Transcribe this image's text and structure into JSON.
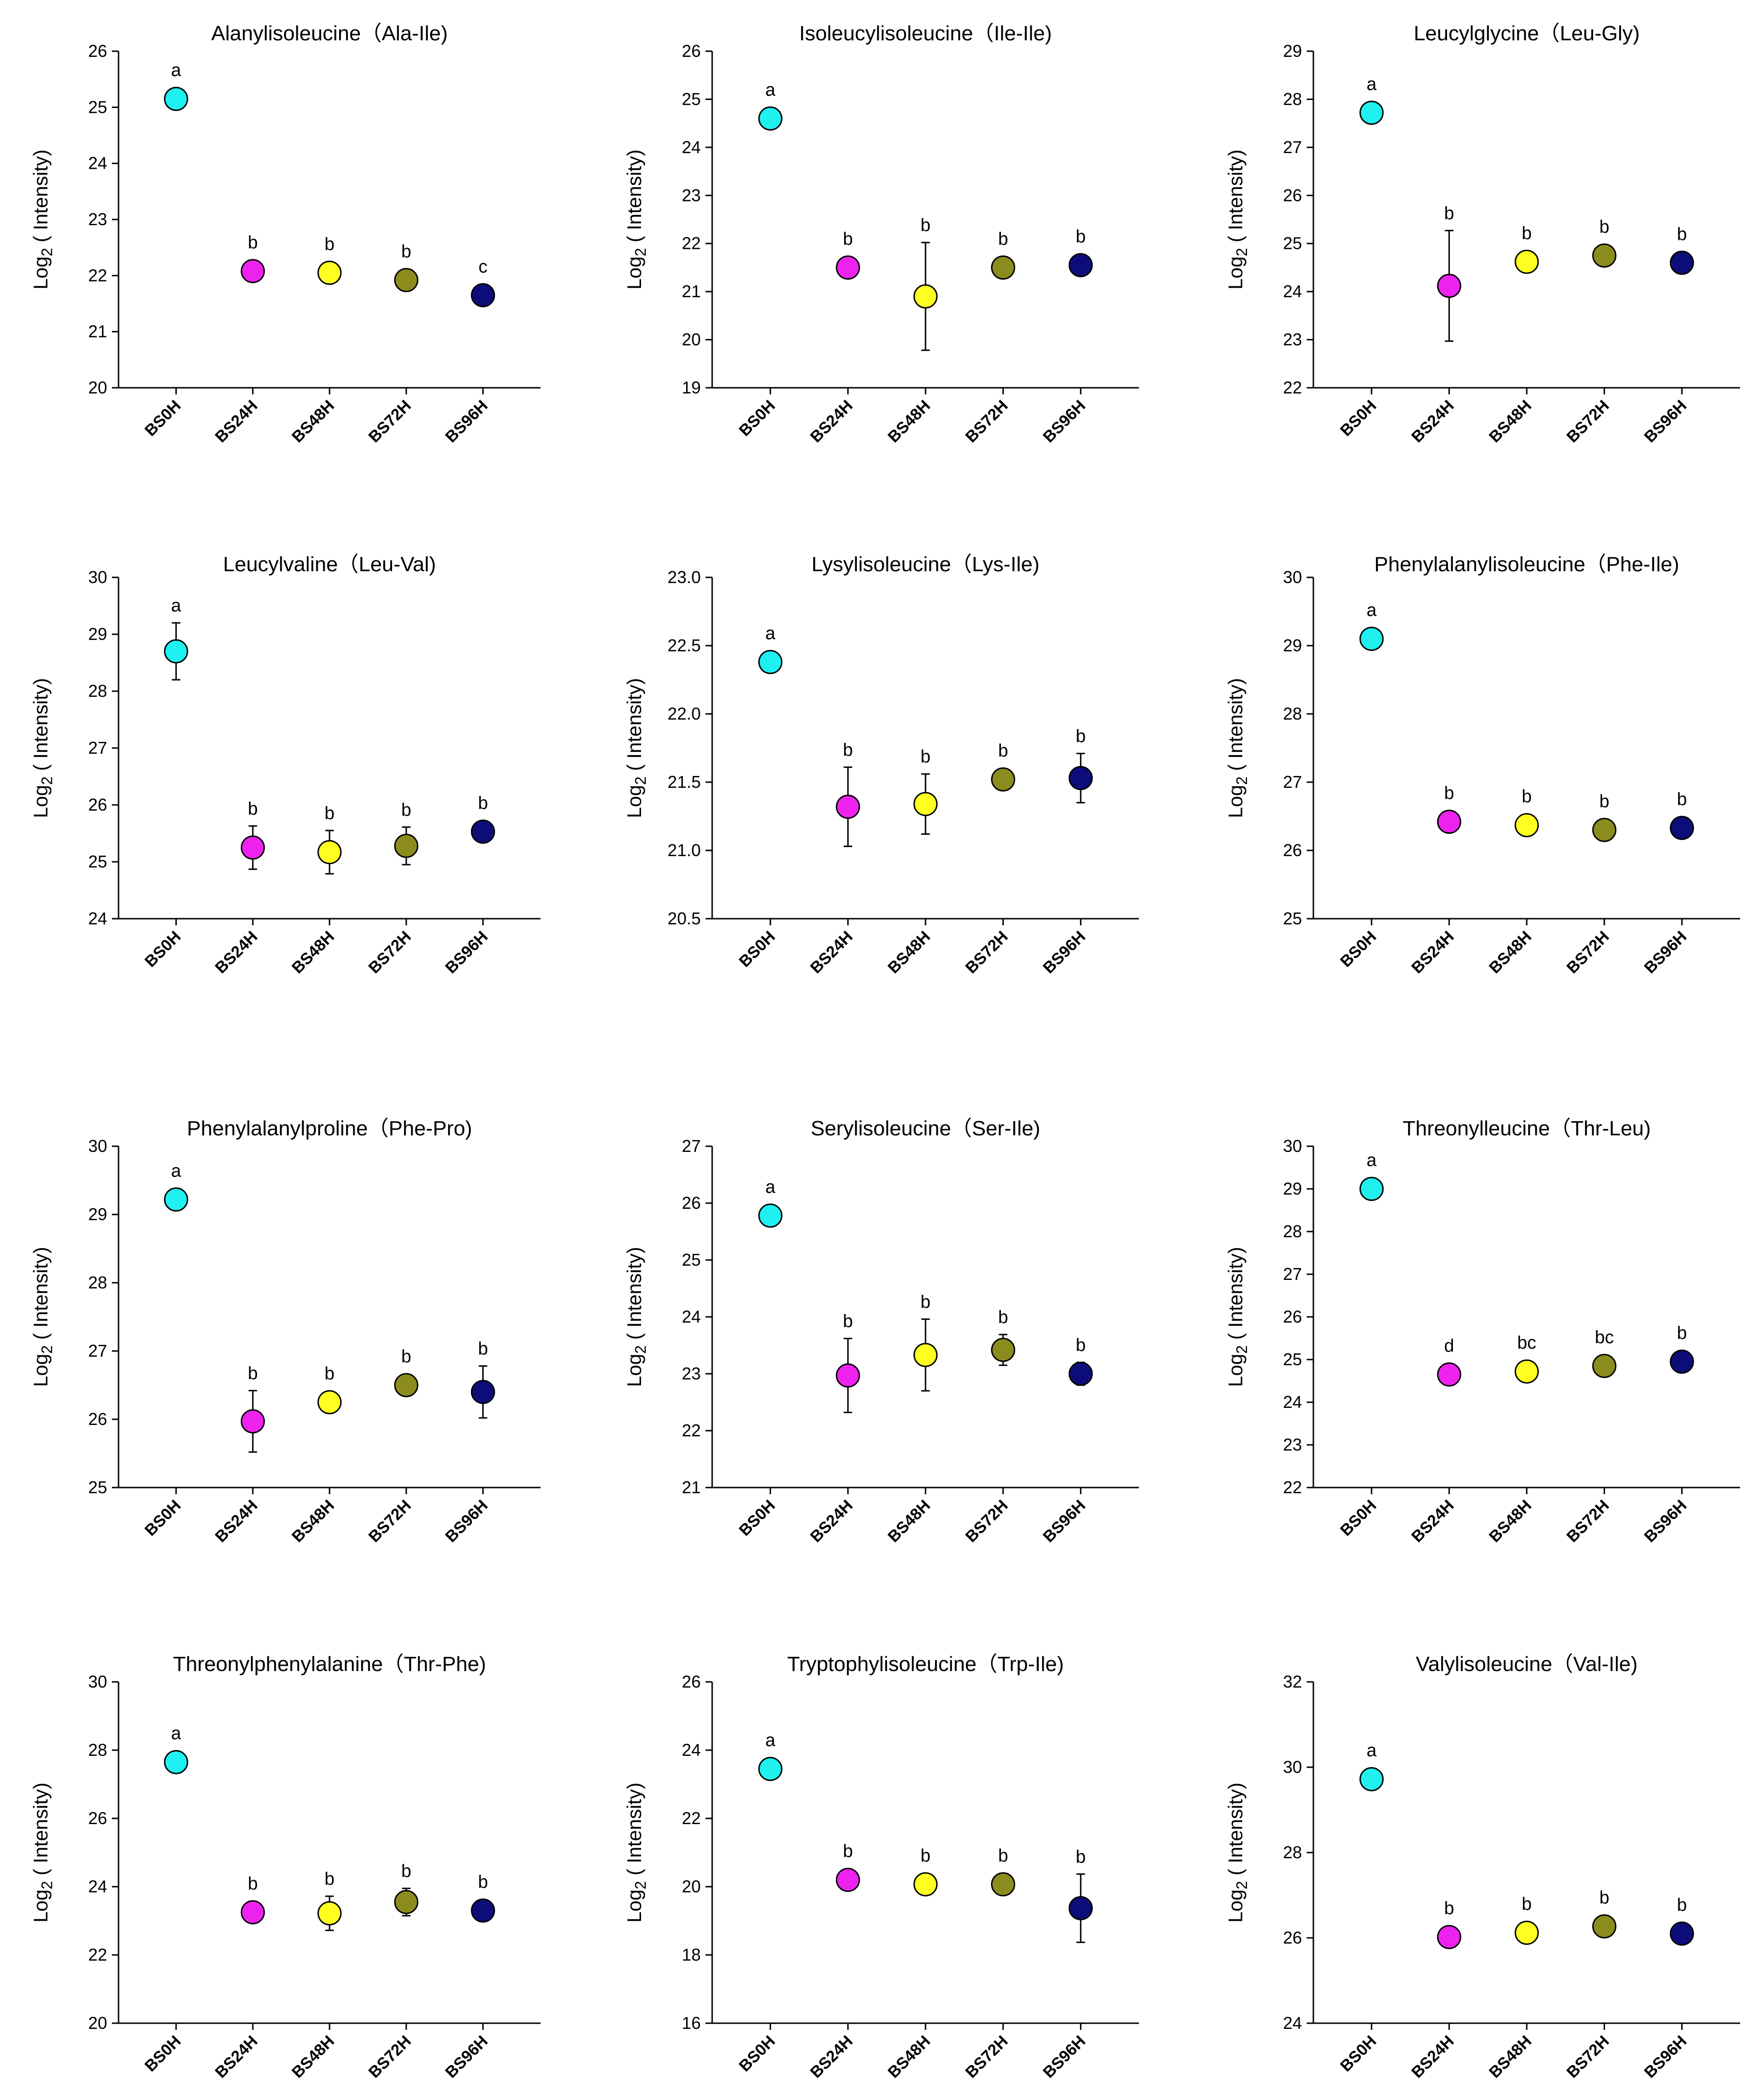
{
  "figure": {
    "ylabel_main": "Log",
    "ylabel_sub": "2",
    "ylabel_tail": " ( Intensity)"
  },
  "chart_data": [
    {
      "type": "scatter",
      "title": "Alanylisoleucine（Ala-Ile)",
      "categories": [
        "BS0H",
        "BS24H",
        "BS48H",
        "BS72H",
        "BS96H"
      ],
      "values": [
        25.15,
        22.08,
        22.05,
        21.92,
        21.65
      ],
      "errors": [
        0.12,
        0.15,
        0.1,
        0.12,
        0.1
      ],
      "letters": [
        "a",
        "b",
        "b",
        "b",
        "c"
      ],
      "ylim": [
        20,
        26
      ],
      "yticks": [
        20,
        21,
        22,
        23,
        24,
        25,
        26
      ],
      "ytick_labels": [
        "20",
        "21",
        "22",
        "23",
        "24",
        "25",
        "26"
      ],
      "ylabel": "Log2 ( Intensity)",
      "xlabel": ""
    },
    {
      "type": "scatter",
      "title": "Isoleucylisoleucine（Ile-Ile)",
      "categories": [
        "BS0H",
        "BS24H",
        "BS48H",
        "BS72H",
        "BS96H"
      ],
      "values": [
        24.6,
        21.5,
        20.9,
        21.5,
        21.55
      ],
      "errors": [
        0.15,
        0.1,
        1.12,
        0.1,
        0.08
      ],
      "letters": [
        "a",
        "b",
        "b",
        "b",
        "b"
      ],
      "ylim": [
        19,
        26
      ],
      "yticks": [
        19,
        20,
        21,
        22,
        23,
        24,
        25,
        26
      ],
      "ytick_labels": [
        "19",
        "20",
        "21",
        "22",
        "23",
        "24",
        "25",
        "26"
      ],
      "ylabel": "Log2 ( Intensity)",
      "xlabel": ""
    },
    {
      "type": "scatter",
      "title": "Leucylglycine（Leu-Gly)",
      "categories": [
        "BS0H",
        "BS24H",
        "BS48H",
        "BS72H",
        "BS96H"
      ],
      "values": [
        27.72,
        24.12,
        24.62,
        24.75,
        24.6
      ],
      "errors": [
        0.08,
        1.15,
        0.1,
        0.15,
        0.08
      ],
      "letters": [
        "a",
        "b",
        "b",
        "b",
        "b"
      ],
      "ylim": [
        22,
        29
      ],
      "yticks": [
        22,
        23,
        24,
        25,
        26,
        27,
        28,
        29
      ],
      "ytick_labels": [
        "22",
        "23",
        "24",
        "25",
        "26",
        "27",
        "28",
        "29"
      ],
      "ylabel": "Log2 ( Intensity)",
      "xlabel": ""
    },
    {
      "type": "scatter",
      "title": "Leucylvaline（Leu-Val)",
      "categories": [
        "BS0H",
        "BS24H",
        "BS48H",
        "BS72H",
        "BS96H"
      ],
      "values": [
        28.7,
        25.25,
        25.17,
        25.28,
        25.53
      ],
      "errors": [
        0.5,
        0.38,
        0.38,
        0.33,
        0.12
      ],
      "letters": [
        "a",
        "b",
        "b",
        "b",
        "b"
      ],
      "ylim": [
        24,
        30
      ],
      "yticks": [
        24,
        25,
        26,
        27,
        28,
        29,
        30
      ],
      "ytick_labels": [
        "24",
        "25",
        "26",
        "27",
        "28",
        "29",
        "30"
      ],
      "ylabel": "Log2 ( Intensity)",
      "xlabel": ""
    },
    {
      "type": "scatter",
      "title": "Lysylisoleucine（Lys-Ile)",
      "categories": [
        "BS0H",
        "BS24H",
        "BS48H",
        "BS72H",
        "BS96H"
      ],
      "values": [
        22.38,
        21.32,
        21.34,
        21.52,
        21.53
      ],
      "errors": [
        0.05,
        0.29,
        0.22,
        0.04,
        0.18
      ],
      "letters": [
        "a",
        "b",
        "b",
        "b",
        "b"
      ],
      "ylim": [
        20.5,
        23.0
      ],
      "yticks": [
        20.5,
        21.0,
        21.5,
        22.0,
        22.5,
        23.0
      ],
      "ytick_labels": [
        "20.5",
        "21.0",
        "21.5",
        "22.0",
        "22.5",
        "23.0"
      ],
      "ylabel": "Log2 ( Intensity)",
      "xlabel": ""
    },
    {
      "type": "scatter",
      "title": "Phenylalanylisoleucine（Phe-Ile)",
      "categories": [
        "BS0H",
        "BS24H",
        "BS48H",
        "BS72H",
        "BS96H"
      ],
      "values": [
        29.1,
        26.42,
        26.37,
        26.3,
        26.33
      ],
      "errors": [
        0.12,
        0.1,
        0.12,
        0.08,
        0.08
      ],
      "letters": [
        "a",
        "b",
        "b",
        "b",
        "b"
      ],
      "ylim": [
        25,
        30
      ],
      "yticks": [
        25,
        26,
        27,
        28,
        29,
        30
      ],
      "ytick_labels": [
        "25",
        "26",
        "27",
        "28",
        "29",
        "30"
      ],
      "ylabel": "Log2 ( Intensity)",
      "xlabel": ""
    },
    {
      "type": "scatter",
      "title": "Phenylalanylproline（Phe-Pro)",
      "categories": [
        "BS0H",
        "BS24H",
        "BS48H",
        "BS72H",
        "BS96H"
      ],
      "values": [
        29.22,
        25.97,
        26.25,
        26.5,
        26.4
      ],
      "errors": [
        0.1,
        0.45,
        0.1,
        0.12,
        0.38
      ],
      "letters": [
        "a",
        "b",
        "b",
        "b",
        "b"
      ],
      "ylim": [
        25,
        30
      ],
      "yticks": [
        25,
        26,
        27,
        28,
        29,
        30
      ],
      "ytick_labels": [
        "25",
        "26",
        "27",
        "28",
        "29",
        "30"
      ],
      "ylabel": "Log2 ( Intensity)",
      "xlabel": ""
    },
    {
      "type": "scatter",
      "title": "Serylisoleucine（Ser-Ile)",
      "categories": [
        "BS0H",
        "BS24H",
        "BS48H",
        "BS72H",
        "BS96H"
      ],
      "values": [
        25.78,
        22.97,
        23.33,
        23.42,
        23.0
      ],
      "errors": [
        0.12,
        0.65,
        0.63,
        0.27,
        0.2
      ],
      "letters": [
        "a",
        "b",
        "b",
        "b",
        "b"
      ],
      "ylim": [
        21,
        27
      ],
      "yticks": [
        21,
        22,
        23,
        24,
        25,
        26,
        27
      ],
      "ytick_labels": [
        "21",
        "22",
        "23",
        "24",
        "25",
        "26",
        "27"
      ],
      "ylabel": "Log2 ( Intensity)",
      "xlabel": ""
    },
    {
      "type": "scatter",
      "title": "Threonylleucine（Thr-Leu)",
      "categories": [
        "BS0H",
        "BS24H",
        "BS48H",
        "BS72H",
        "BS96H"
      ],
      "values": [
        29.0,
        24.65,
        24.72,
        24.85,
        24.95
      ],
      "errors": [
        0.2,
        0.12,
        0.2,
        0.15,
        0.12
      ],
      "letters": [
        "a",
        "d",
        "bc",
        "bc",
        "b"
      ],
      "ylim": [
        22,
        30
      ],
      "yticks": [
        22,
        23,
        24,
        25,
        26,
        27,
        28,
        29,
        30
      ],
      "ytick_labels": [
        "22",
        "23",
        "24",
        "25",
        "26",
        "27",
        "28",
        "29",
        "30"
      ],
      "ylabel": "Log2 ( Intensity)",
      "xlabel": ""
    },
    {
      "type": "scatter",
      "title": "Threonylphenylalanine（Thr-Phe)",
      "categories": [
        "BS0H",
        "BS24H",
        "BS48H",
        "BS72H",
        "BS96H"
      ],
      "values": [
        27.65,
        23.25,
        23.22,
        23.55,
        23.3
      ],
      "errors": [
        0.15,
        0.15,
        0.5,
        0.4,
        0.12
      ],
      "letters": [
        "a",
        "b",
        "b",
        "b",
        "b"
      ],
      "ylim": [
        20,
        30
      ],
      "yticks": [
        20,
        22,
        24,
        26,
        28,
        30
      ],
      "ytick_labels": [
        "20",
        "22",
        "24",
        "26",
        "28",
        "30"
      ],
      "ylabel": "Log2 ( Intensity)",
      "xlabel": ""
    },
    {
      "type": "scatter",
      "title": "Tryptophylisoleucine（Trp-Ile)",
      "categories": [
        "BS0H",
        "BS24H",
        "BS48H",
        "BS72H",
        "BS96H"
      ],
      "values": [
        23.45,
        20.2,
        20.07,
        20.07,
        19.37
      ],
      "errors": [
        0.3,
        0.2,
        0.25,
        0.25,
        1.0
      ],
      "letters": [
        "a",
        "b",
        "b",
        "b",
        "b"
      ],
      "ylim": [
        16,
        26
      ],
      "yticks": [
        16,
        18,
        20,
        22,
        24,
        26
      ],
      "ytick_labels": [
        "16",
        "18",
        "20",
        "22",
        "24",
        "26"
      ],
      "ylabel": "Log2 ( Intensity)",
      "xlabel": ""
    },
    {
      "type": "scatter",
      "title": "Valylisoleucine（Val-Ile)",
      "categories": [
        "BS0H",
        "BS24H",
        "BS48H",
        "BS72H",
        "BS96H"
      ],
      "values": [
        29.72,
        26.02,
        26.12,
        26.27,
        26.1
      ],
      "errors": [
        0.1,
        0.12,
        0.22,
        0.2,
        0.15
      ],
      "letters": [
        "a",
        "b",
        "b",
        "b",
        "b"
      ],
      "ylim": [
        24,
        32
      ],
      "yticks": [
        24,
        26,
        28,
        30,
        32
      ],
      "ytick_labels": [
        "24",
        "26",
        "28",
        "30",
        "32"
      ],
      "ylabel": "Log2 ( Intensity)",
      "xlabel": ""
    }
  ],
  "colors": [
    "#1ff0f0",
    "#ee22ee",
    "#ffff22",
    "#8c8c1e",
    "#0d0d7a"
  ]
}
